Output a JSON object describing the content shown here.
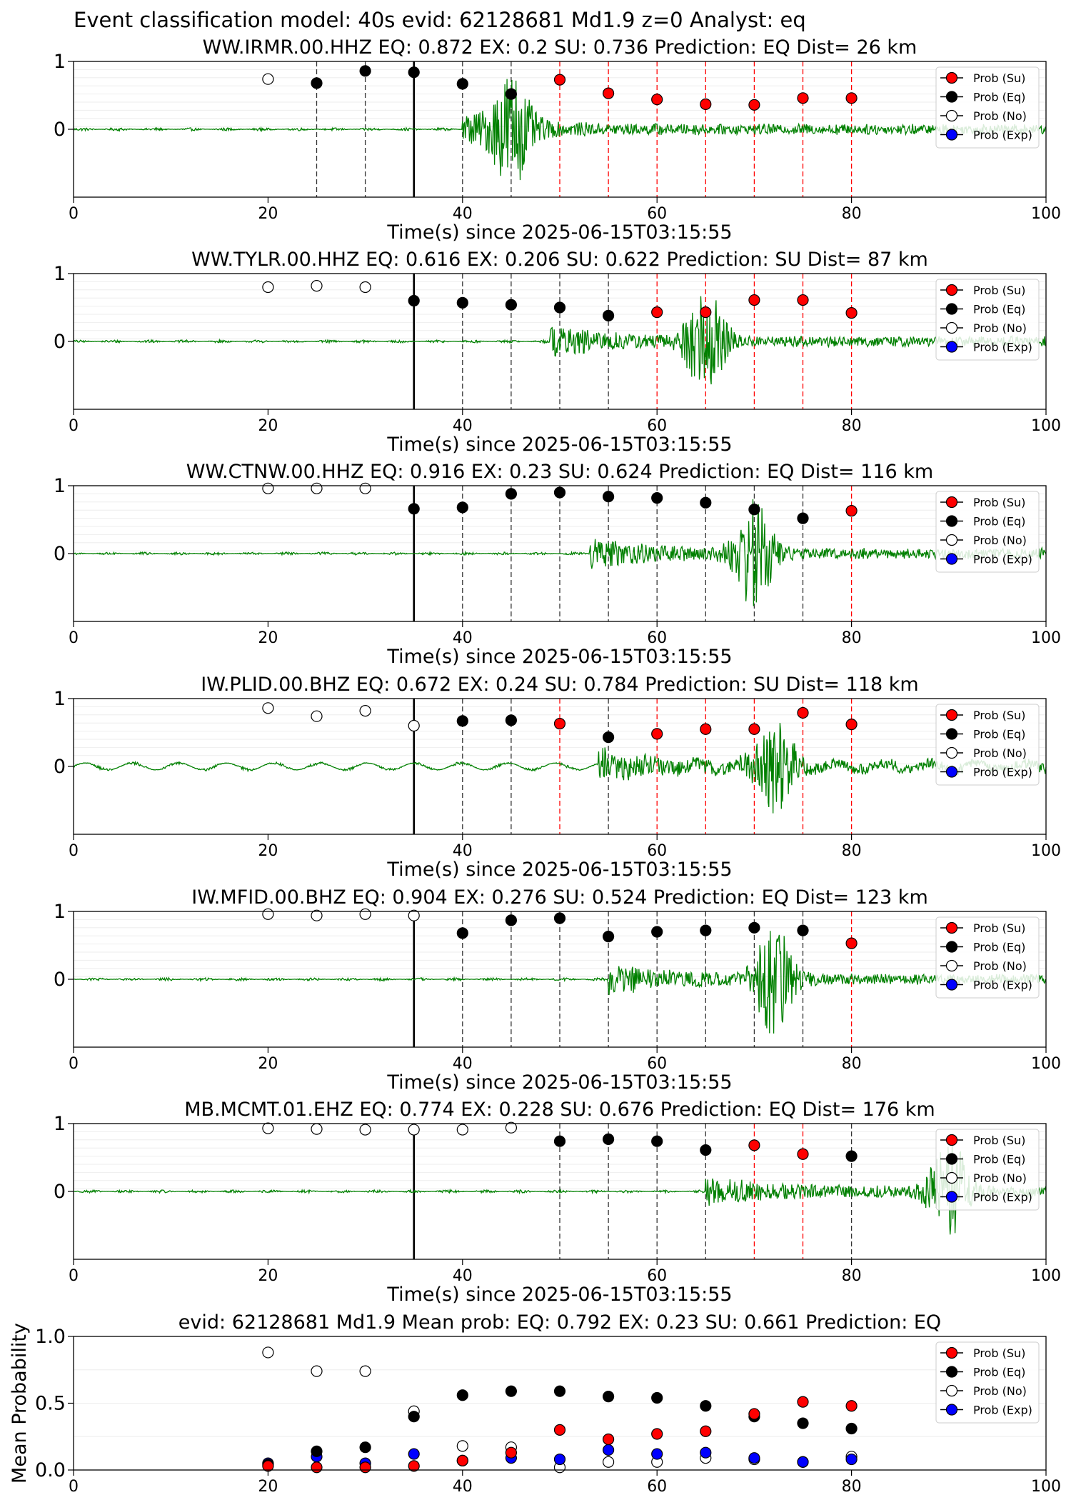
{
  "suptitle": "Event classification model: 40s evid: 62128681 Md1.9 z=0 Analyst: eq",
  "xlabel": "Time(s) since 2025-06-15T03:15:55",
  "legend_labels": [
    "Prob (Su)",
    "Prob (Eq)",
    "Prob (No)",
    "Prob (Exp)"
  ],
  "colors": {
    "waveform": "#008000",
    "su": "#ff0000",
    "eq": "#000000",
    "no": "#ffffff",
    "exp": "#0000ff"
  },
  "chart_data": [
    {
      "type": "line",
      "title": "WW.IRMR.00.HHZ   EQ: 0.872  EX: 0.2  SU: 0.736   Prediction: EQ    Dist= 26 km",
      "xlim": [
        0,
        100
      ],
      "ylim": [
        -1,
        1
      ],
      "xticks": [
        "0",
        "20",
        "40",
        "60",
        "80",
        "100"
      ],
      "yticks": [
        "0",
        "1"
      ],
      "origin_time": 35,
      "onset": 40,
      "waveform_peak": 45,
      "points": [
        {
          "t": 20,
          "p": 0.74,
          "cls": "no"
        },
        {
          "t": 25,
          "p": 0.68,
          "cls": "eq"
        },
        {
          "t": 30,
          "p": 0.86,
          "cls": "eq"
        },
        {
          "t": 35,
          "p": 0.84,
          "cls": "eq"
        },
        {
          "t": 40,
          "p": 0.67,
          "cls": "eq"
        },
        {
          "t": 45,
          "p": 0.52,
          "cls": "eq"
        },
        {
          "t": 50,
          "p": 0.73,
          "cls": "su"
        },
        {
          "t": 55,
          "p": 0.53,
          "cls": "su"
        },
        {
          "t": 60,
          "p": 0.44,
          "cls": "su"
        },
        {
          "t": 65,
          "p": 0.37,
          "cls": "su"
        },
        {
          "t": 70,
          "p": 0.36,
          "cls": "su"
        },
        {
          "t": 75,
          "p": 0.46,
          "cls": "su"
        },
        {
          "t": 80,
          "p": 0.46,
          "cls": "su"
        }
      ]
    },
    {
      "type": "line",
      "title": "WW.TYLR.00.HHZ   EQ: 0.616  EX: 0.206  SU: 0.622   Prediction: SU    Dist= 87 km",
      "xlim": [
        0,
        100
      ],
      "ylim": [
        -1,
        1
      ],
      "xticks": [
        "0",
        "20",
        "40",
        "60",
        "80",
        "100"
      ],
      "yticks": [
        "0",
        "1"
      ],
      "origin_time": 35,
      "onset": 49,
      "waveform_peak": 65,
      "points": [
        {
          "t": 20,
          "p": 0.8,
          "cls": "no"
        },
        {
          "t": 25,
          "p": 0.82,
          "cls": "no"
        },
        {
          "t": 30,
          "p": 0.8,
          "cls": "no"
        },
        {
          "t": 35,
          "p": 0.6,
          "cls": "eq"
        },
        {
          "t": 40,
          "p": 0.57,
          "cls": "eq"
        },
        {
          "t": 45,
          "p": 0.54,
          "cls": "eq"
        },
        {
          "t": 50,
          "p": 0.5,
          "cls": "eq"
        },
        {
          "t": 55,
          "p": 0.38,
          "cls": "eq"
        },
        {
          "t": 60,
          "p": 0.43,
          "cls": "su"
        },
        {
          "t": 65,
          "p": 0.43,
          "cls": "su"
        },
        {
          "t": 70,
          "p": 0.61,
          "cls": "su"
        },
        {
          "t": 75,
          "p": 0.61,
          "cls": "su"
        },
        {
          "t": 80,
          "p": 0.42,
          "cls": "su"
        }
      ]
    },
    {
      "type": "line",
      "title": "WW.CTNW.00.HHZ   EQ: 0.916  EX: 0.23  SU: 0.624   Prediction: EQ    Dist= 116 km",
      "xlim": [
        0,
        100
      ],
      "ylim": [
        -1,
        1
      ],
      "xticks": [
        "0",
        "20",
        "40",
        "60",
        "80",
        "100"
      ],
      "yticks": [
        "0",
        "1"
      ],
      "origin_time": 35,
      "onset": 53,
      "waveform_peak": 70,
      "points": [
        {
          "t": 20,
          "p": 0.96,
          "cls": "no"
        },
        {
          "t": 25,
          "p": 0.96,
          "cls": "no"
        },
        {
          "t": 30,
          "p": 0.96,
          "cls": "no"
        },
        {
          "t": 35,
          "p": 0.66,
          "cls": "eq"
        },
        {
          "t": 40,
          "p": 0.68,
          "cls": "eq"
        },
        {
          "t": 45,
          "p": 0.88,
          "cls": "eq"
        },
        {
          "t": 50,
          "p": 0.9,
          "cls": "eq"
        },
        {
          "t": 55,
          "p": 0.84,
          "cls": "eq"
        },
        {
          "t": 60,
          "p": 0.82,
          "cls": "eq"
        },
        {
          "t": 65,
          "p": 0.75,
          "cls": "eq"
        },
        {
          "t": 70,
          "p": 0.65,
          "cls": "eq"
        },
        {
          "t": 75,
          "p": 0.52,
          "cls": "eq"
        },
        {
          "t": 80,
          "p": 0.63,
          "cls": "su"
        }
      ]
    },
    {
      "type": "line",
      "title": "IW.PLID.00.BHZ   EQ: 0.672  EX: 0.24  SU: 0.784   Prediction: SU    Dist= 118 km",
      "xlim": [
        0,
        100
      ],
      "ylim": [
        -1,
        1
      ],
      "xticks": [
        "0",
        "20",
        "40",
        "60",
        "80",
        "100"
      ],
      "yticks": [
        "0",
        "1"
      ],
      "origin_time": 35,
      "onset": 54,
      "waveform_peak": 72,
      "points": [
        {
          "t": 20,
          "p": 0.86,
          "cls": "no"
        },
        {
          "t": 25,
          "p": 0.74,
          "cls": "no"
        },
        {
          "t": 30,
          "p": 0.82,
          "cls": "no"
        },
        {
          "t": 35,
          "p": 0.6,
          "cls": "no"
        },
        {
          "t": 40,
          "p": 0.67,
          "cls": "eq"
        },
        {
          "t": 45,
          "p": 0.68,
          "cls": "eq"
        },
        {
          "t": 50,
          "p": 0.63,
          "cls": "su"
        },
        {
          "t": 55,
          "p": 0.43,
          "cls": "eq"
        },
        {
          "t": 60,
          "p": 0.48,
          "cls": "su"
        },
        {
          "t": 65,
          "p": 0.55,
          "cls": "su"
        },
        {
          "t": 70,
          "p": 0.55,
          "cls": "su"
        },
        {
          "t": 75,
          "p": 0.79,
          "cls": "su"
        },
        {
          "t": 80,
          "p": 0.62,
          "cls": "su"
        }
      ]
    },
    {
      "type": "line",
      "title": "IW.MFID.00.BHZ   EQ: 0.904  EX: 0.276  SU: 0.524   Prediction: EQ    Dist= 123 km",
      "xlim": [
        0,
        100
      ],
      "ylim": [
        -1,
        1
      ],
      "xticks": [
        "0",
        "20",
        "40",
        "60",
        "80",
        "100"
      ],
      "yticks": [
        "0",
        "1"
      ],
      "origin_time": 35,
      "onset": 55,
      "waveform_peak": 72,
      "points": [
        {
          "t": 20,
          "p": 0.96,
          "cls": "no"
        },
        {
          "t": 25,
          "p": 0.94,
          "cls": "no"
        },
        {
          "t": 30,
          "p": 0.96,
          "cls": "no"
        },
        {
          "t": 35,
          "p": 0.94,
          "cls": "no"
        },
        {
          "t": 40,
          "p": 0.68,
          "cls": "eq"
        },
        {
          "t": 45,
          "p": 0.87,
          "cls": "eq"
        },
        {
          "t": 50,
          "p": 0.9,
          "cls": "eq"
        },
        {
          "t": 55,
          "p": 0.63,
          "cls": "eq"
        },
        {
          "t": 60,
          "p": 0.7,
          "cls": "eq"
        },
        {
          "t": 65,
          "p": 0.72,
          "cls": "eq"
        },
        {
          "t": 70,
          "p": 0.76,
          "cls": "eq"
        },
        {
          "t": 75,
          "p": 0.72,
          "cls": "eq"
        },
        {
          "t": 80,
          "p": 0.53,
          "cls": "su"
        }
      ]
    },
    {
      "type": "line",
      "title": "MB.MCMT.01.EHZ   EQ: 0.774  EX: 0.228  SU: 0.676   Prediction: EQ    Dist= 176 km",
      "xlim": [
        0,
        100
      ],
      "ylim": [
        -1,
        1
      ],
      "xticks": [
        "0",
        "20",
        "40",
        "60",
        "80",
        "100"
      ],
      "yticks": [
        "0",
        "1"
      ],
      "origin_time": 35,
      "onset": 65,
      "waveform_peak": 90,
      "points": [
        {
          "t": 20,
          "p": 0.93,
          "cls": "no"
        },
        {
          "t": 25,
          "p": 0.92,
          "cls": "no"
        },
        {
          "t": 30,
          "p": 0.91,
          "cls": "no"
        },
        {
          "t": 35,
          "p": 0.91,
          "cls": "no"
        },
        {
          "t": 40,
          "p": 0.91,
          "cls": "no"
        },
        {
          "t": 45,
          "p": 0.94,
          "cls": "no"
        },
        {
          "t": 50,
          "p": 0.74,
          "cls": "eq"
        },
        {
          "t": 55,
          "p": 0.77,
          "cls": "eq"
        },
        {
          "t": 60,
          "p": 0.74,
          "cls": "eq"
        },
        {
          "t": 65,
          "p": 0.61,
          "cls": "eq"
        },
        {
          "t": 70,
          "p": 0.68,
          "cls": "su"
        },
        {
          "t": 75,
          "p": 0.55,
          "cls": "su"
        },
        {
          "t": 80,
          "p": 0.52,
          "cls": "eq"
        }
      ]
    },
    {
      "type": "scatter",
      "title": "evid: 62128681  Md1.9   Mean prob:   EQ: 0.792  EX: 0.23  SU: 0.661   Prediction: EQ",
      "ylabel": "Mean Probability",
      "xlim": [
        0,
        100
      ],
      "ylim": [
        0,
        1
      ],
      "xticks": [
        "0",
        "20",
        "40",
        "60",
        "80",
        "100"
      ],
      "yticks": [
        "0.0",
        "0.5",
        "1.0"
      ],
      "x": [
        20,
        25,
        30,
        35,
        40,
        45,
        50,
        55,
        60,
        65,
        70,
        75,
        80
      ],
      "series": [
        {
          "cls": "no",
          "values": [
            0.88,
            0.74,
            0.74,
            0.44,
            0.18,
            0.17,
            0.02,
            0.06,
            0.06,
            0.09,
            0.08,
            0.06,
            0.1
          ]
        },
        {
          "cls": "exp",
          "values": [
            0.05,
            0.1,
            0.05,
            0.12,
            0.07,
            0.09,
            0.08,
            0.15,
            0.12,
            0.13,
            0.09,
            0.06,
            0.08
          ]
        },
        {
          "cls": "eq",
          "values": [
            0.04,
            0.14,
            0.17,
            0.4,
            0.56,
            0.59,
            0.59,
            0.55,
            0.54,
            0.48,
            0.4,
            0.35,
            0.31
          ]
        },
        {
          "cls": "su",
          "values": [
            0.03,
            0.02,
            0.02,
            0.03,
            0.07,
            0.13,
            0.3,
            0.23,
            0.27,
            0.29,
            0.42,
            0.51,
            0.48
          ]
        }
      ]
    }
  ]
}
